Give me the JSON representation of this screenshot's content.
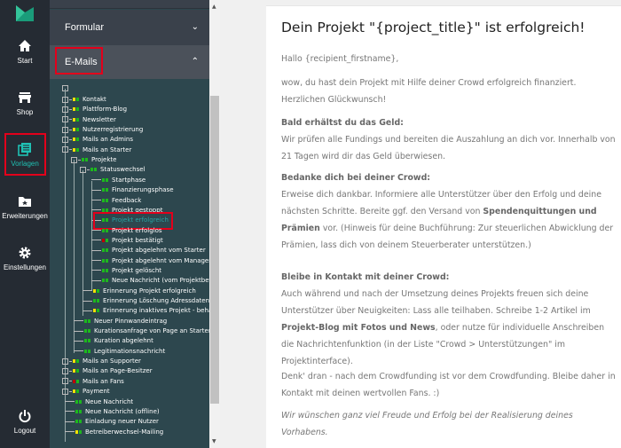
{
  "nav": {
    "items": [
      {
        "label": "Start",
        "icon": "home-icon"
      },
      {
        "label": "Shop",
        "icon": "shop-icon"
      },
      {
        "label": "Vorlagen",
        "icon": "templates-icon",
        "active": true
      },
      {
        "label": "Erweiterungen",
        "icon": "folder-star-icon"
      },
      {
        "label": "Einstellungen",
        "icon": "gear-icon"
      },
      {
        "label": "Logout",
        "icon": "power-icon"
      }
    ]
  },
  "panel": {
    "formular": "Formular",
    "emails": "E-Mails"
  },
  "colors": {
    "yellow": "#f0e000",
    "green": "#1db81d",
    "red": "#c00000",
    "accent": "#1fc1b3",
    "highlight": "#e3001b"
  },
  "tree": [
    {
      "label": "Kontakt",
      "d": 0,
      "e": true,
      "c": "yellow"
    },
    {
      "label": "Plattform-Blog",
      "d": 0,
      "e": true,
      "c": "yellow"
    },
    {
      "label": "Newsletter",
      "d": 0,
      "e": true,
      "c": "yellow"
    },
    {
      "label": "Nutzerregistrierung",
      "d": 0,
      "e": true,
      "c": "yellow"
    },
    {
      "label": "Mails an Admins",
      "d": 0,
      "e": true,
      "c": "yellow"
    },
    {
      "label": "Mails an Starter",
      "d": 0,
      "e": true,
      "c": "yellow"
    },
    {
      "label": "Projekte",
      "d": 1,
      "e": true,
      "c": "green"
    },
    {
      "label": "Statuswechsel",
      "d": 2,
      "e": true,
      "c": "green"
    },
    {
      "label": "Startphase",
      "d": 3,
      "c": "green"
    },
    {
      "label": "Finanzierungsphase",
      "d": 3,
      "c": "green"
    },
    {
      "label": "Feedback",
      "d": 3,
      "c": "green"
    },
    {
      "label": "Projekt gestoppt",
      "d": 3,
      "c": "green"
    },
    {
      "label": "Projekt erfolgreich",
      "d": 3,
      "c": "green",
      "selected": true
    },
    {
      "label": "Projekt erfolglos",
      "d": 3,
      "c": "green"
    },
    {
      "label": "Projekt bestätigt",
      "d": 3,
      "c": "red"
    },
    {
      "label": "Projekt abgelehnt vom Starter",
      "d": 3,
      "c": "green"
    },
    {
      "label": "Projekt abgelehnt vom Manager",
      "d": 3,
      "c": "green"
    },
    {
      "label": "Projekt gelöscht",
      "d": 3,
      "c": "green"
    },
    {
      "label": "Neue Nachricht (vom Projektbetreuer)",
      "d": 3,
      "c": "green"
    },
    {
      "label": "Erinnerung Projekt erfolgreich",
      "d": 2,
      "c": "yellow"
    },
    {
      "label": "Erinnerung Löschung Adressdaten",
      "d": 2,
      "c": "green"
    },
    {
      "label": "Erinnerung inaktives Projekt - behalten",
      "d": 2,
      "c": "yellow"
    },
    {
      "label": "Neuer Pinnwandeintrag",
      "d": 1,
      "c": "green"
    },
    {
      "label": "Kurationsanfrage von Page an Starter",
      "d": 1,
      "c": "green"
    },
    {
      "label": "Kuration abgelehnt",
      "d": 1,
      "c": "green"
    },
    {
      "label": "Legitimationsnachricht",
      "d": 1,
      "c": "green"
    },
    {
      "label": "Mails an Supporter",
      "d": 0,
      "e": true,
      "c": "yellow"
    },
    {
      "label": "Mails an Page-Besitzer",
      "d": 0,
      "e": true,
      "c": "yellow"
    },
    {
      "label": "Mails an Fans",
      "d": 0,
      "e": true,
      "c": "red"
    },
    {
      "label": "Payment",
      "d": 0,
      "e": true,
      "c": "yellow"
    },
    {
      "label": "Neue Nachricht",
      "d": 0,
      "c": "green"
    },
    {
      "label": "Neue Nachricht (offline)",
      "d": 0,
      "c": "green"
    },
    {
      "label": "Einladung neuer Nutzer",
      "d": 0,
      "c": "green"
    },
    {
      "label": "Betreiberwechsel-Mailing",
      "d": 0,
      "c": "yellow"
    }
  ],
  "email": {
    "title": "Dein Projekt \"{project_title}\" ist erfolgreich!",
    "greeting": "Hallo {recipient_firstname},",
    "intro": "wow, du hast dein Projekt mit Hilfe deiner Crowd erfolgreich finanziert. Herzlichen Glückwunsch!",
    "s1_head": "Bald erhältst du das Geld:",
    "s1_body": "Wir prüfen alle Fundings und bereiten die Auszahlung an dich vor. Innerhalb von 21 Tagen wird dir das Geld überwiesen.",
    "s2_head": "Bedanke dich bei deiner Crowd:",
    "s2_a": "Erweise dich dankbar. Informiere alle Unterstützer über den Erfolg und deine nächsten Schritte. Bereite ggf. den Versand von ",
    "s2_b": "Spendenquittungen und Prämien",
    "s2_c": " vor. (Hinweis für deine Buchführung: Zur steuerlichen Abwicklung der Prämien, lass dich von deinem Steuerberater unterstützen.)",
    "s3_head": "Bleibe in Kontakt mit deiner Crowd:",
    "s3_a": "Auch während und nach der Umsetzung deines Projekts freuen sich deine Unterstützer über Neuigkeiten: Lass alle teilhaben. Schreibe 1-2 Artikel im ",
    "s3_b": "Projekt-Blog mit Fotos und News",
    "s3_c": ", oder nutze für individuelle Anschreiben die Nachrichtenfunktion (in der Liste \"Crowd > Unterstützungen\" im Projektinterface).",
    "outro": "Denk' dran - nach dem Crowdfunding ist vor dem Crowdfunding. Bleibe daher in Kontakt mit deinen wertvollen Fans. :)",
    "closing": "Wir wünschen ganz viel Freude und Erfolg bei der Realisierung deines Vorhabens."
  }
}
